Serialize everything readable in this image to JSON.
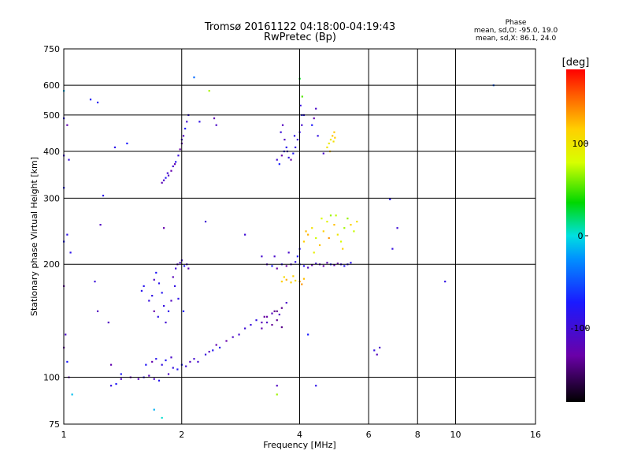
{
  "chart_data": {
    "type": "scatter",
    "title": "Tromsø 20161122 04:18:00-04:19:43",
    "subtitle": "RwPretec (Bp)",
    "xlabel": "Frequency [MHz]",
    "ylabel": "Stationary phase Virtual Height [km]",
    "x_scale": "log",
    "y_scale": "log",
    "xlim": [
      1,
      16
    ],
    "ylim": [
      75,
      750
    ],
    "x_ticks": [
      1,
      2,
      4,
      6,
      8,
      10,
      16
    ],
    "x_tick_labels": [
      "1",
      "2",
      "4",
      "6",
      "8",
      "10",
      "16"
    ],
    "y_ticks": [
      75,
      100,
      200,
      300,
      400,
      500,
      600,
      750
    ],
    "y_tick_labels": [
      "75",
      "100",
      "200",
      "300",
      "400",
      "500",
      "600",
      "750"
    ],
    "grid": true,
    "stats": {
      "header": "Phase",
      "o_line": "mean, sd,O: -95.0, 19.0",
      "x_line": "mean, sd,X:  86.1, 24.0"
    },
    "colorbar": {
      "label": "[deg]",
      "range": [
        -180,
        180
      ],
      "ticks": [
        100,
        0,
        -100
      ],
      "tick_labels": [
        "100",
        "0",
        "-100"
      ]
    },
    "series": [
      {
        "name": "",
        "points": [
          [
            1.32,
            95
          ],
          [
            1.36,
            96
          ],
          [
            1.4,
            99
          ],
          [
            1.48,
            100
          ],
          [
            1.55,
            99
          ],
          [
            1.6,
            100
          ],
          [
            1.65,
            101
          ],
          [
            1.7,
            99
          ],
          [
            1.75,
            98
          ],
          [
            1.85,
            102
          ],
          [
            1.9,
            106
          ],
          [
            1.95,
            105
          ],
          [
            2.0,
            108
          ],
          [
            2.05,
            107
          ],
          [
            2.1,
            110
          ],
          [
            2.15,
            112
          ],
          [
            2.2,
            110
          ],
          [
            2.3,
            115
          ],
          [
            2.35,
            117
          ],
          [
            2.4,
            118
          ],
          [
            2.45,
            122
          ],
          [
            2.5,
            120
          ],
          [
            2.6,
            125
          ],
          [
            2.7,
            128
          ],
          [
            2.8,
            130
          ],
          [
            2.9,
            135
          ],
          [
            3.0,
            138
          ],
          [
            3.1,
            142
          ],
          [
            3.2,
            140
          ],
          [
            3.3,
            145
          ],
          [
            3.4,
            148
          ],
          [
            3.5,
            150
          ],
          [
            3.6,
            153
          ],
          [
            3.7,
            158
          ],
          [
            1.62,
            108
          ],
          [
            1.68,
            110
          ],
          [
            1.72,
            112
          ],
          [
            1.78,
            108
          ],
          [
            1.82,
            111
          ],
          [
            1.88,
            113
          ]
        ]
      },
      {
        "name": "",
        "points": [
          [
            1.58,
            170
          ],
          [
            1.6,
            175
          ],
          [
            1.65,
            160
          ],
          [
            1.68,
            165
          ],
          [
            1.7,
            182
          ],
          [
            1.72,
            190
          ],
          [
            1.75,
            178
          ],
          [
            1.78,
            168
          ],
          [
            1.8,
            155
          ],
          [
            1.82,
            140
          ],
          [
            1.85,
            150
          ],
          [
            1.88,
            160
          ],
          [
            1.9,
            185
          ],
          [
            1.93,
            195
          ],
          [
            1.95,
            200
          ],
          [
            1.98,
            202
          ],
          [
            2.0,
            205
          ],
          [
            2.03,
            198
          ],
          [
            2.06,
            200
          ],
          [
            2.08,
            195
          ],
          [
            1.92,
            175
          ],
          [
            1.96,
            162
          ],
          [
            2.02,
            150
          ],
          [
            1.7,
            150
          ],
          [
            1.74,
            145
          ]
        ]
      },
      {
        "name": "",
        "points": [
          [
            1.78,
            330
          ],
          [
            1.8,
            335
          ],
          [
            1.82,
            340
          ],
          [
            1.85,
            345
          ],
          [
            1.88,
            355
          ],
          [
            1.9,
            365
          ],
          [
            1.93,
            375
          ],
          [
            1.96,
            390
          ],
          [
            1.98,
            405
          ],
          [
            2.0,
            420
          ],
          [
            2.02,
            440
          ],
          [
            2.04,
            460
          ],
          [
            2.06,
            480
          ],
          [
            2.08,
            500
          ],
          [
            2.22,
            480
          ],
          [
            1.84,
            350
          ],
          [
            1.92,
            370
          ],
          [
            2.0,
            430
          ]
        ]
      },
      {
        "name": "",
        "points": [
          [
            3.5,
            380
          ],
          [
            3.55,
            370
          ],
          [
            3.6,
            390
          ],
          [
            3.65,
            400
          ],
          [
            3.7,
            410
          ],
          [
            3.75,
            385
          ],
          [
            3.8,
            380
          ],
          [
            3.85,
            395
          ],
          [
            3.9,
            410
          ],
          [
            3.95,
            430
          ],
          [
            4.0,
            450
          ],
          [
            4.05,
            470
          ],
          [
            4.1,
            500
          ],
          [
            4.02,
            530
          ],
          [
            4.06,
            560
          ],
          [
            4.3,
            470
          ],
          [
            4.35,
            490
          ],
          [
            4.4,
            520
          ],
          [
            4.45,
            440
          ],
          [
            3.58,
            450
          ],
          [
            3.62,
            470
          ],
          [
            3.66,
            430
          ],
          [
            3.72,
            400
          ],
          [
            3.88,
            440
          ]
        ]
      },
      {
        "name": "",
        "points": [
          [
            4.7,
            410
          ],
          [
            4.75,
            420
          ],
          [
            4.8,
            430
          ],
          [
            4.85,
            440
          ],
          [
            4.9,
            450
          ],
          [
            4.92,
            435
          ],
          [
            4.78,
            400
          ],
          [
            4.6,
            395
          ],
          [
            4.88,
            425
          ]
        ]
      },
      {
        "name": "",
        "points": [
          [
            3.3,
            200
          ],
          [
            3.4,
            198
          ],
          [
            3.5,
            195
          ],
          [
            3.6,
            200
          ],
          [
            3.7,
            198
          ],
          [
            3.8,
            200
          ],
          [
            3.9,
            203
          ],
          [
            4.0,
            200
          ],
          [
            4.1,
            198
          ],
          [
            4.2,
            196
          ],
          [
            4.3,
            199
          ],
          [
            4.4,
            201
          ],
          [
            4.5,
            200
          ],
          [
            4.6,
            198
          ],
          [
            4.7,
            202
          ],
          [
            4.8,
            200
          ],
          [
            4.9,
            199
          ],
          [
            5.0,
            201
          ],
          [
            5.1,
            200
          ],
          [
            5.2,
            198
          ],
          [
            5.3,
            200
          ],
          [
            5.4,
            202
          ],
          [
            3.45,
            210
          ],
          [
            3.75,
            215
          ],
          [
            3.95,
            210
          ]
        ]
      },
      {
        "name": "",
        "points": [
          [
            3.6,
            180
          ],
          [
            3.7,
            182
          ],
          [
            3.8,
            179
          ],
          [
            3.9,
            181
          ],
          [
            4.0,
            180
          ],
          [
            4.1,
            183
          ],
          [
            3.65,
            185
          ],
          [
            3.85,
            186
          ],
          [
            4.05,
            177
          ]
        ]
      },
      {
        "name": "",
        "points": [
          [
            4.0,
            220
          ],
          [
            4.1,
            230
          ],
          [
            4.2,
            240
          ],
          [
            4.3,
            250
          ],
          [
            4.4,
            235
          ],
          [
            4.5,
            225
          ],
          [
            4.6,
            245
          ],
          [
            4.7,
            260
          ],
          [
            4.8,
            270
          ],
          [
            4.9,
            255
          ],
          [
            5.0,
            240
          ],
          [
            5.1,
            230
          ],
          [
            5.2,
            250
          ],
          [
            5.3,
            265
          ],
          [
            5.4,
            255
          ],
          [
            5.5,
            245
          ],
          [
            5.6,
            260
          ],
          [
            4.15,
            245
          ],
          [
            4.35,
            215
          ],
          [
            4.55,
            265
          ],
          [
            4.75,
            235
          ],
          [
            4.95,
            270
          ],
          [
            5.15,
            220
          ]
        ]
      },
      {
        "name": "",
        "points": [
          [
            3.2,
            135
          ],
          [
            3.3,
            140
          ],
          [
            3.4,
            138
          ],
          [
            3.5,
            142
          ],
          [
            3.6,
            136
          ],
          [
            3.25,
            145
          ],
          [
            3.45,
            150
          ],
          [
            3.55,
            147
          ]
        ]
      },
      {
        "name": "",
        "points": [
          [
            1.0,
            580
          ],
          [
            1.0,
            490
          ],
          [
            1.02,
            470
          ],
          [
            1.0,
            390
          ],
          [
            1.03,
            380
          ],
          [
            1.0,
            320
          ],
          [
            1.02,
            240
          ],
          [
            1.0,
            230
          ],
          [
            1.04,
            215
          ],
          [
            1.0,
            175
          ],
          [
            1.01,
            130
          ],
          [
            1.0,
            120
          ],
          [
            1.02,
            110
          ],
          [
            1.03,
            100
          ],
          [
            1.05,
            90
          ],
          [
            1.17,
            550
          ],
          [
            1.22,
            540
          ],
          [
            1.26,
            305
          ],
          [
            1.24,
            255
          ],
          [
            1.35,
            410
          ],
          [
            1.45,
            420
          ],
          [
            1.2,
            180
          ],
          [
            1.22,
            150
          ],
          [
            1.3,
            140
          ],
          [
            1.32,
            108
          ],
          [
            1.4,
            102
          ],
          [
            1.7,
            82
          ],
          [
            1.78,
            78
          ],
          [
            1.8,
            250
          ],
          [
            2.15,
            630
          ],
          [
            2.35,
            580
          ],
          [
            2.42,
            490
          ],
          [
            2.45,
            470
          ],
          [
            2.3,
            260
          ],
          [
            2.9,
            240
          ],
          [
            3.2,
            210
          ],
          [
            3.5,
            95
          ],
          [
            3.5,
            90
          ],
          [
            4.4,
            95
          ],
          [
            4.0,
            625
          ],
          [
            4.05,
            500
          ],
          [
            6.2,
            118
          ],
          [
            6.4,
            120
          ],
          [
            6.8,
            298
          ],
          [
            6.9,
            220
          ],
          [
            7.1,
            250
          ],
          [
            9.4,
            180
          ],
          [
            12.5,
            600
          ],
          [
            6.3,
            115
          ],
          [
            4.2,
            130
          ]
        ]
      }
    ]
  }
}
